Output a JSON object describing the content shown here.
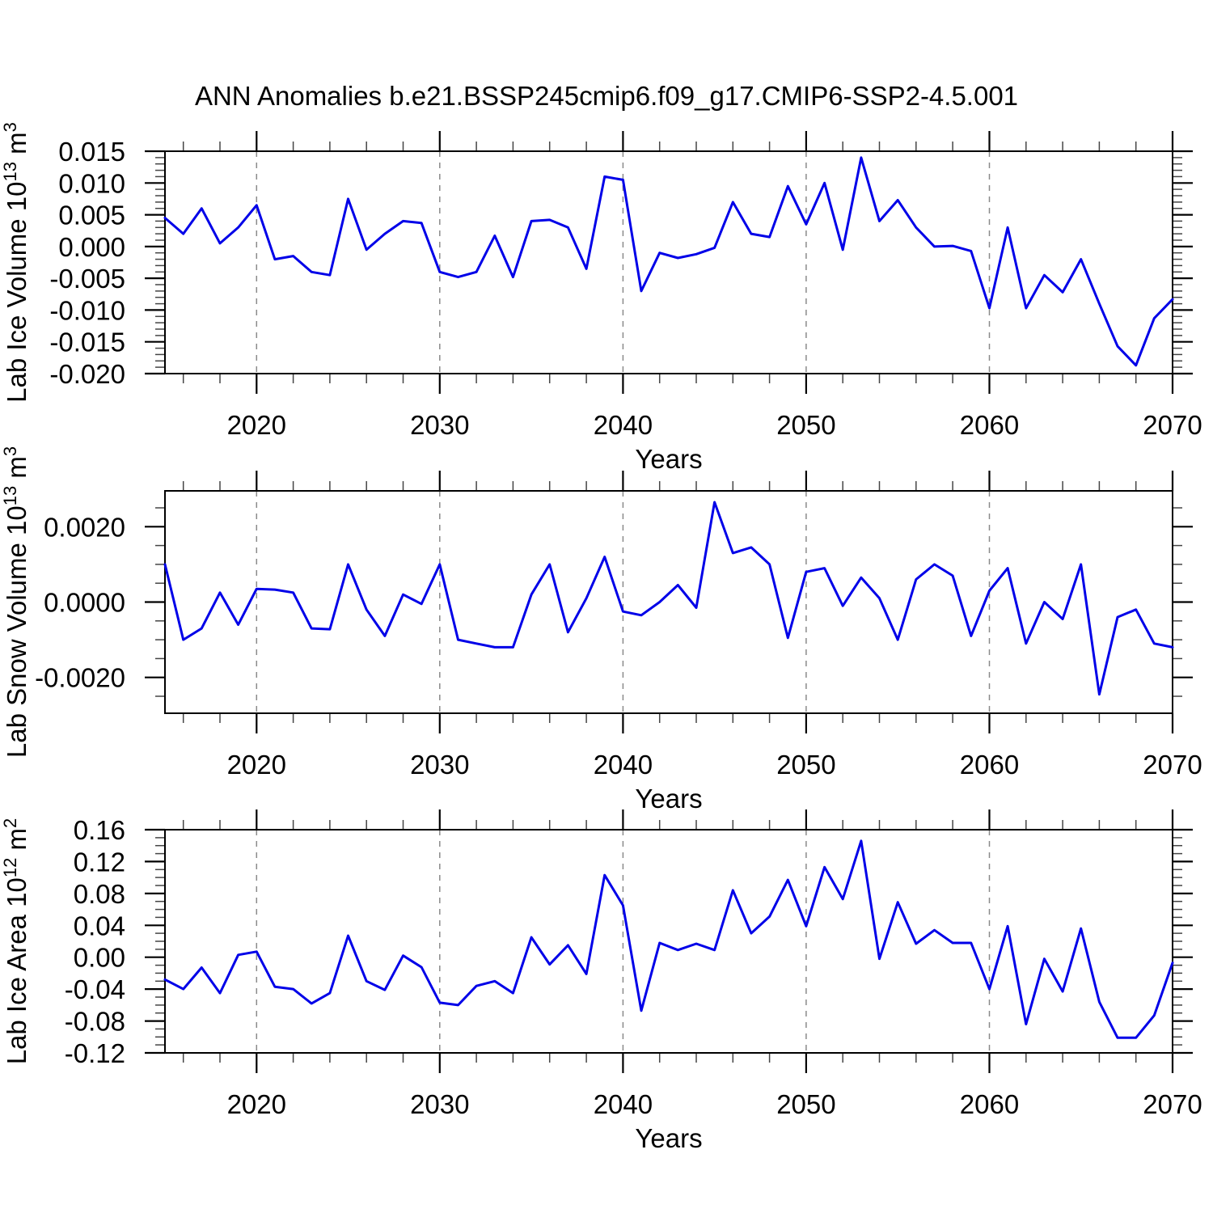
{
  "title": "ANN Anomalies b.e21.BSSP245cmip6.f09_g17.CMIP6-SSP2-4.5.001",
  "figure": {
    "background": "#ffffff",
    "frame_color": "#000000",
    "gridline_color": "#8a8a8a",
    "gridline_style": "dashed-vertical"
  },
  "x_years": [
    2015,
    2016,
    2017,
    2018,
    2019,
    2020,
    2021,
    2022,
    2023,
    2024,
    2025,
    2026,
    2027,
    2028,
    2029,
    2030,
    2031,
    2032,
    2033,
    2034,
    2035,
    2036,
    2037,
    2038,
    2039,
    2040,
    2041,
    2042,
    2043,
    2044,
    2045,
    2046,
    2047,
    2048,
    2049,
    2050,
    2051,
    2052,
    2053,
    2054,
    2055,
    2056,
    2057,
    2058,
    2059,
    2060,
    2061,
    2062,
    2063,
    2064,
    2065,
    2066,
    2067,
    2068,
    2069,
    2070
  ],
  "x_axis": {
    "label": "Years",
    "range": [
      2015,
      2070
    ],
    "ticks": [
      2020,
      2030,
      2040,
      2050,
      2060,
      2070
    ],
    "minor_step": 2,
    "gridlines": [
      2020,
      2030,
      2040,
      2050,
      2060
    ]
  },
  "chart_data": [
    {
      "type": "line",
      "ylabel": "Lab Ice Volume 10¹³ m³",
      "ylabel_parts": [
        {
          "text": "Lab Ice Volume 10",
          "sup": false
        },
        {
          "text": "13",
          "sup": true
        },
        {
          "text": " m",
          "sup": false
        },
        {
          "text": "3",
          "sup": true
        }
      ],
      "ylim": [
        -0.02,
        0.015
      ],
      "yticks": [
        0.015,
        0.01,
        0.005,
        0.0,
        -0.005,
        -0.01,
        -0.015,
        -0.02
      ],
      "ytick_decimals": 3,
      "yminor_step": 0.001,
      "line_color": "#0000e8",
      "values": [
        0.0045,
        0.002,
        0.006,
        0.0005,
        0.003,
        0.0065,
        -0.002,
        -0.0015,
        -0.004,
        -0.0045,
        0.0075,
        -0.0005,
        0.002,
        0.004,
        0.0037,
        -0.004,
        -0.0048,
        -0.004,
        0.0017,
        -0.0048,
        0.004,
        0.0042,
        0.003,
        -0.0035,
        0.011,
        0.0105,
        -0.007,
        -0.001,
        -0.0018,
        -0.0012,
        -0.0002,
        0.007,
        0.002,
        0.0015,
        0.0095,
        0.0035,
        0.01,
        -0.0005,
        0.014,
        0.004,
        0.0073,
        0.003,
        0.0,
        0.0001,
        -0.0007,
        -0.0097,
        0.003,
        -0.0097,
        -0.0045,
        -0.0072,
        -0.002,
        -0.009,
        -0.0157,
        -0.0187,
        -0.0113,
        -0.0083
      ]
    },
    {
      "type": "line",
      "ylabel": "Lab Snow Volume 10¹³ m³",
      "ylabel_parts": [
        {
          "text": "Lab Snow Volume 10",
          "sup": false
        },
        {
          "text": "13",
          "sup": true
        },
        {
          "text": " m",
          "sup": false
        },
        {
          "text": "3",
          "sup": true
        }
      ],
      "ylim": [
        -0.00295,
        0.00295
      ],
      "yticks": [
        0.002,
        0.0,
        -0.002
      ],
      "ytick_decimals": 4,
      "yminor_step": 0.0005,
      "line_color": "#0000e8",
      "values": [
        0.001,
        -0.001,
        -0.0007,
        0.00025,
        -0.0006,
        0.00035,
        0.00033,
        0.00025,
        -0.0007,
        -0.00072,
        0.001,
        -0.0002,
        -0.0009,
        0.0002,
        -5e-05,
        0.001,
        -0.001,
        -0.0011,
        -0.0012,
        -0.0012,
        0.0002,
        0.001,
        -0.0008,
        0.0001,
        0.0012,
        -0.00025,
        -0.00035,
        0.0,
        0.00045,
        -0.00015,
        0.00265,
        0.0013,
        0.00145,
        0.001,
        -0.00095,
        0.0008,
        0.0009,
        -0.0001,
        0.00065,
        0.0001,
        -0.001,
        0.0006,
        0.001,
        0.0007,
        -0.0009,
        0.0003,
        0.0009,
        -0.0011,
        0.0,
        -0.00045,
        0.001,
        -0.00245,
        -0.0004,
        -0.0002,
        -0.0011,
        -0.0012
      ]
    },
    {
      "type": "line",
      "ylabel": "Lab Ice Area 10¹² m²",
      "ylabel_parts": [
        {
          "text": "Lab Ice Area 10",
          "sup": false
        },
        {
          "text": "12",
          "sup": true
        },
        {
          "text": " m",
          "sup": false
        },
        {
          "text": "2",
          "sup": true
        }
      ],
      "ylim": [
        -0.12,
        0.16
      ],
      "yticks": [
        0.16,
        0.12,
        0.08,
        0.04,
        0.0,
        -0.04,
        -0.08,
        -0.12
      ],
      "ytick_decimals": 2,
      "yminor_step": 0.01,
      "line_color": "#0000e8",
      "values": [
        -0.028,
        -0.04,
        -0.013,
        -0.045,
        0.003,
        0.007,
        -0.037,
        -0.04,
        -0.058,
        -0.045,
        0.027,
        -0.03,
        -0.041,
        0.002,
        -0.0125,
        -0.057,
        -0.06,
        -0.036,
        -0.03,
        -0.045,
        0.025,
        -0.009,
        0.015,
        -0.021,
        0.103,
        0.065,
        -0.067,
        0.018,
        0.009,
        0.017,
        0.009,
        0.084,
        0.03,
        0.051,
        0.097,
        0.039,
        0.113,
        0.073,
        0.146,
        -0.002,
        0.069,
        0.017,
        0.034,
        0.018,
        0.018,
        -0.04,
        0.039,
        -0.084,
        -0.002,
        -0.043,
        0.036,
        -0.056,
        -0.101,
        -0.101,
        -0.073,
        -0.007
      ]
    }
  ]
}
